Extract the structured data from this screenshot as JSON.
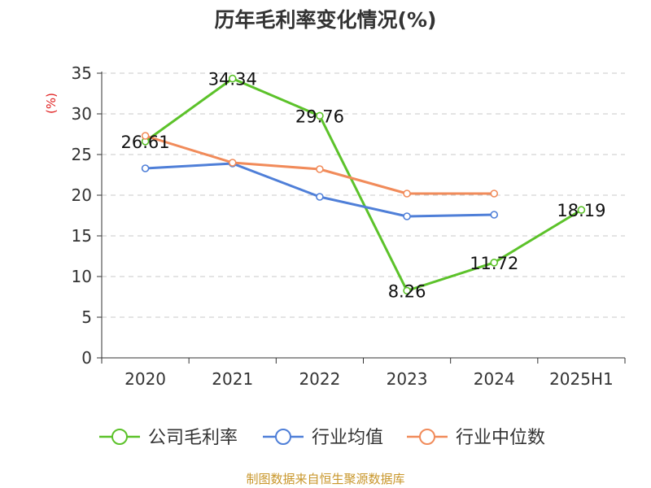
{
  "chart_data": {
    "type": "line",
    "title": "历年毛利率变化情况(%)",
    "ylabel": "(%)",
    "xlabel": "",
    "categories": [
      "2020",
      "2021",
      "2022",
      "2023",
      "2024",
      "2025H1"
    ],
    "ylim": [
      0,
      35
    ],
    "yticks": [
      0,
      5,
      10,
      15,
      20,
      25,
      30,
      35
    ],
    "grid": true,
    "legend_position": "bottom",
    "series": [
      {
        "name": "公司毛利率",
        "color": "#5cc22a",
        "values": [
          26.61,
          34.34,
          29.76,
          8.26,
          11.72,
          18.19
        ],
        "labels": [
          "26.61",
          "34.34",
          "29.76",
          "8.26",
          "11.72",
          "18.19"
        ]
      },
      {
        "name": "行业均值",
        "color": "#4f7fd8",
        "values": [
          23.3,
          23.9,
          19.8,
          17.4,
          17.6,
          null
        ]
      },
      {
        "name": "行业中位数",
        "color": "#f18b5a",
        "values": [
          27.3,
          24.0,
          23.2,
          20.2,
          20.2,
          null
        ]
      }
    ]
  },
  "footer": {
    "source": "制图数据来自恒生聚源数据库"
  }
}
